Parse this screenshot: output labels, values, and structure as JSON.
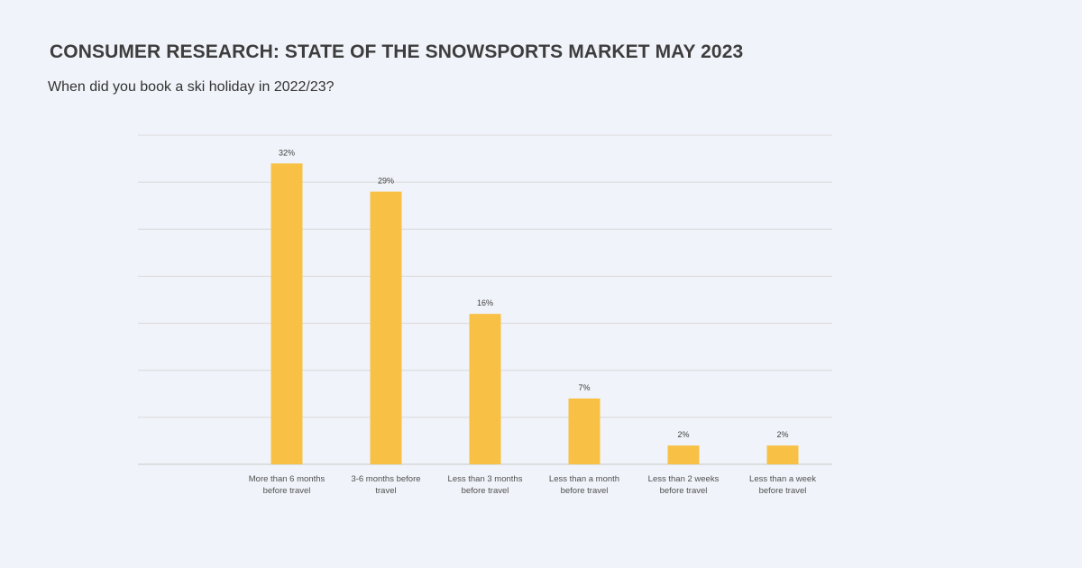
{
  "header": {
    "title": "CONSUMER RESEARCH: STATE OF THE SNOWSPORTS MARKET MAY 2023",
    "subtitle": "When did you book a ski holiday in 2022/23?"
  },
  "colors": {
    "bar": "#f8c145",
    "grid": "#d9d9d9",
    "background": "#f0f3f9"
  },
  "chart_data": {
    "type": "bar",
    "title": "When did you book a ski holiday in 2022/23?",
    "xlabel": "",
    "ylabel": "",
    "ylim": [
      0,
      35
    ],
    "grid": true,
    "gridline_count": 7,
    "value_suffix": "%",
    "categories": [
      [
        "More than 6 months",
        "before travel"
      ],
      [
        "3-6 months before",
        "travel"
      ],
      [
        "Less than 3 months",
        "before travel"
      ],
      [
        "Less than a month",
        "before travel"
      ],
      [
        "Less than 2 weeks",
        "before travel"
      ],
      [
        "Less than a week",
        "before travel"
      ]
    ],
    "values": [
      32,
      29,
      16,
      7,
      2,
      2
    ]
  }
}
